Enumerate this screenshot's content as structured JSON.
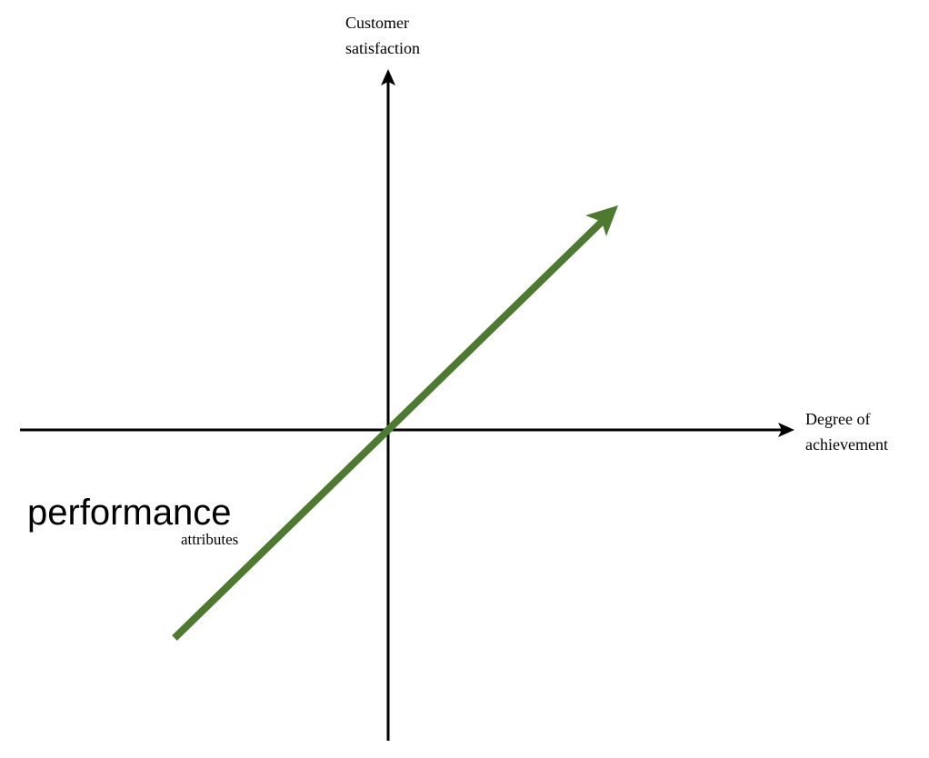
{
  "y_axis": {
    "label_line1": "Customer",
    "label_line2": "satisfaction"
  },
  "x_axis": {
    "label_line1": "Degree of",
    "label_line2": "achievement"
  },
  "curve": {
    "title": "performance",
    "subtitle": "attributes",
    "color": "#4e7a2f",
    "shape": "straight line, positive slope through origin"
  },
  "axis_color": "#000000"
}
